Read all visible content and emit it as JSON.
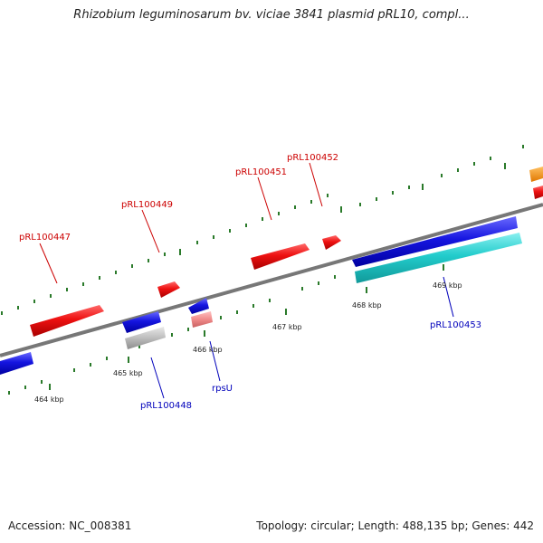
{
  "title": "Rhizobium leguminosarum bv. viciae 3841 plasmid pRL10, compl...",
  "accession": "Accession: NC_008381",
  "summary": "Topology: circular; Length: 488,135 bp; Genes: 442",
  "colors": {
    "backbone": "#777777",
    "forward_gene": "#ee1111",
    "reverse_gene": "#1111dd",
    "rna_gene": "#22cccc",
    "pseudo_gene": "#bbbbbb",
    "tick": "#2a7a2a",
    "forward_label": "#cc0000",
    "reverse_label": "#0000bb"
  },
  "scale_labels": [
    "464 kbp",
    "465 kbp",
    "466 kbp",
    "467 kbp",
    "468 kbp",
    "469 kbp"
  ],
  "gene_labels": {
    "pRL100447": "pRL100447",
    "pRL100448": "pRL100448",
    "pRL100449": "pRL100449",
    "pRL100451": "pRL100451",
    "pRL100452": "pRL100452",
    "pRL100453": "pRL100453",
    "rpsU": "rpsU"
  }
}
